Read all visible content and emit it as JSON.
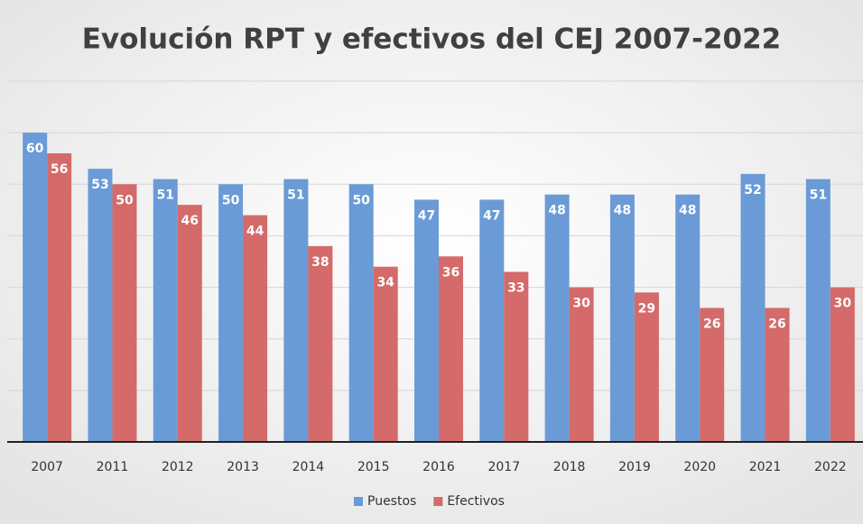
{
  "chart_data": {
    "type": "bar",
    "title": "Evolución RPT y efectivos del CEJ 2007-2022",
    "categories": [
      "2007",
      "2011",
      "2012",
      "2013",
      "2014",
      "2015",
      "2016",
      "2017",
      "2018",
      "2019",
      "2020",
      "2021",
      "2022"
    ],
    "series": [
      {
        "name": "Puestos",
        "color": "#6a9bd6",
        "values": [
          60,
          53,
          51,
          50,
          51,
          50,
          47,
          47,
          48,
          48,
          48,
          52,
          51
        ]
      },
      {
        "name": "Efectivos",
        "color": "#d46a6a",
        "values": [
          56,
          50,
          46,
          44,
          38,
          34,
          36,
          33,
          30,
          29,
          26,
          26,
          30
        ]
      }
    ],
    "ylim": [
      0,
      70
    ],
    "yticks": [
      0,
      10,
      20,
      30,
      40,
      50,
      60,
      70
    ],
    "grid": true,
    "legend": "bottom"
  }
}
